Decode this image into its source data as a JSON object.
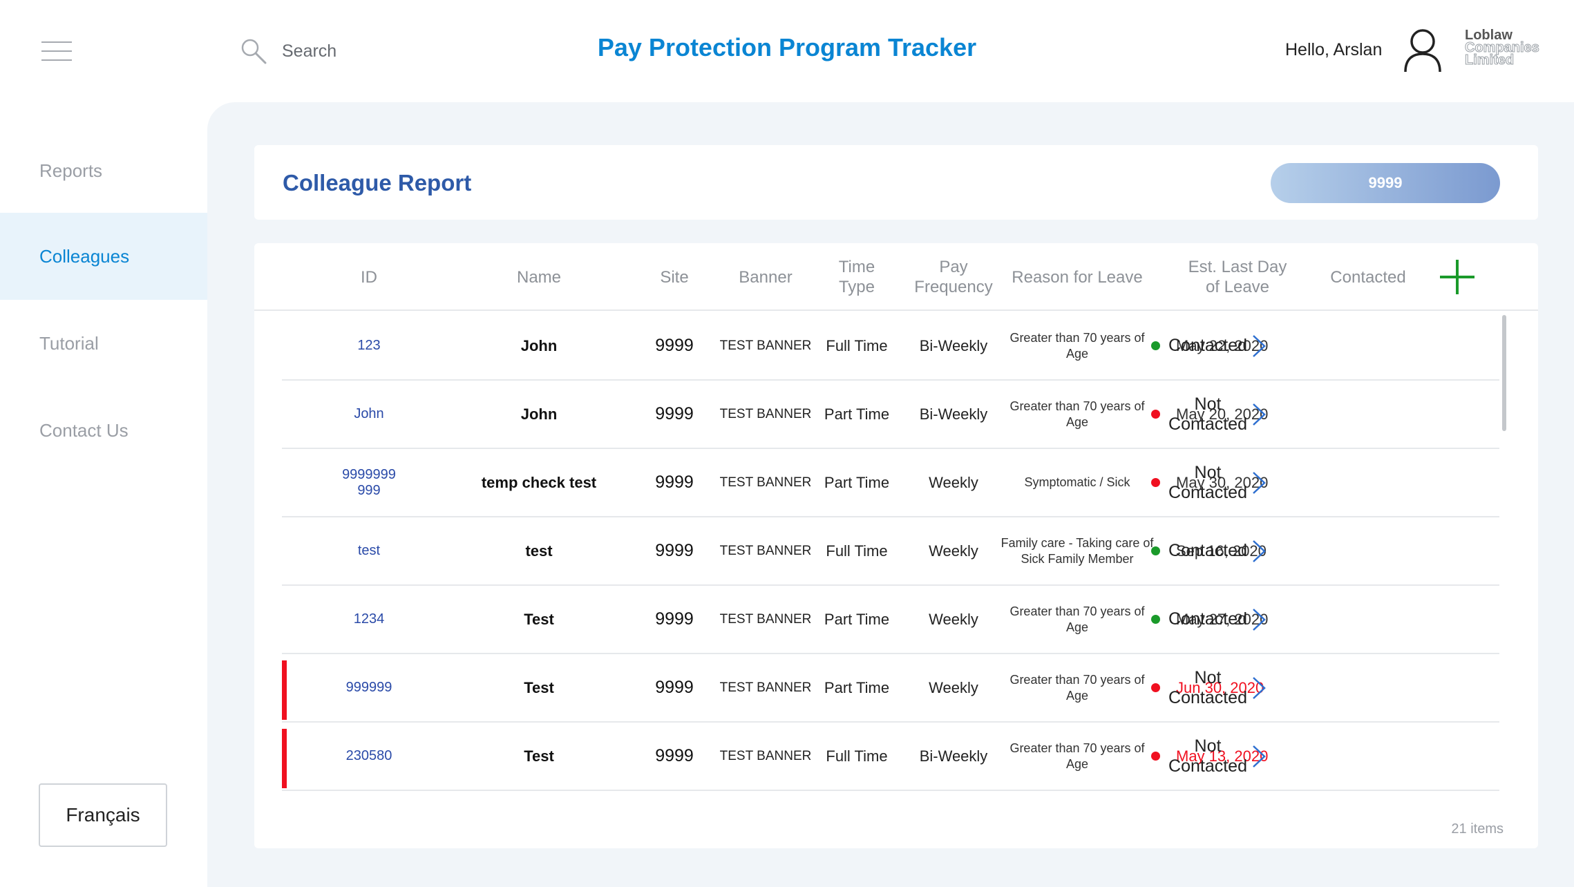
{
  "header": {
    "search_placeholder": "Search",
    "app_title": "Pay Protection Program Tracker",
    "greeting": "Hello, Arslan",
    "logo_lines": [
      "Loblaw",
      "Companies",
      "Limited"
    ]
  },
  "sidebar": {
    "items": [
      {
        "label": "Reports",
        "active": false
      },
      {
        "label": "Colleagues",
        "active": true
      },
      {
        "label": "Tutorial",
        "active": false
      },
      {
        "label": "Contact Us",
        "active": false
      }
    ],
    "language_button": "Français"
  },
  "report": {
    "title": "Colleague Report",
    "site_selector": "9999"
  },
  "table": {
    "columns": [
      "ID",
      "Name",
      "Site",
      "Banner",
      "Time\nType",
      "Pay\nFrequency",
      "Reason for Leave",
      "Est. Last Day\nof Leave",
      "Contacted"
    ],
    "rows": [
      {
        "id": "123",
        "name": "John",
        "site": "9999",
        "banner": "TEST BANNER",
        "time_type": "Full Time",
        "pay_frequency": "Bi-Weekly",
        "reason": "Greater than 70 years of\nAge",
        "last_day": "May 22, 2020",
        "overdue": false,
        "status": "Contacted",
        "contacted": true
      },
      {
        "id": "John",
        "name": "John",
        "site": "9999",
        "banner": "TEST BANNER",
        "time_type": "Part Time",
        "pay_frequency": "Bi-Weekly",
        "reason": "Greater than 70 years of\nAge",
        "last_day": "May 20, 2020",
        "overdue": false,
        "status": "Not\nContacted",
        "contacted": false
      },
      {
        "id": "9999999\n999",
        "name": "temp check test",
        "site": "9999",
        "banner": "TEST BANNER",
        "time_type": "Part Time",
        "pay_frequency": "Weekly",
        "reason": "Symptomatic / Sick",
        "last_day": "May 30, 2020",
        "overdue": false,
        "status": "Not\nContacted",
        "contacted": false
      },
      {
        "id": "test",
        "name": "test",
        "site": "9999",
        "banner": "TEST BANNER",
        "time_type": "Full Time",
        "pay_frequency": "Weekly",
        "reason": "Family care - Taking care of\nSick Family Member",
        "last_day": "Sep 16, 2020",
        "overdue": false,
        "status": "Contacted",
        "contacted": true
      },
      {
        "id": "1234",
        "name": "Test",
        "site": "9999",
        "banner": "TEST BANNER",
        "time_type": "Part Time",
        "pay_frequency": "Weekly",
        "reason": "Greater than 70 years of\nAge",
        "last_day": "May 27, 2020",
        "overdue": false,
        "status": "Contacted",
        "contacted": true
      },
      {
        "id": "999999",
        "name": "Test",
        "site": "9999",
        "banner": "TEST BANNER",
        "time_type": "Part Time",
        "pay_frequency": "Weekly",
        "reason": "Greater than 70 years of\nAge",
        "last_day": "Jun 30, 2020",
        "overdue": true,
        "status": "Not\nContacted",
        "contacted": false
      },
      {
        "id": "230580",
        "name": "Test",
        "site": "9999",
        "banner": "TEST BANNER",
        "time_type": "Full Time",
        "pay_frequency": "Bi-Weekly",
        "reason": "Greater than 70 years of\nAge",
        "last_day": "May 13, 2020",
        "overdue": true,
        "status": "Not\nContacted",
        "contacted": false
      }
    ],
    "item_count": "21 items"
  },
  "colors": {
    "brand_blue": "#0a85d3",
    "title_blue": "#2e5aa8",
    "contacted": "#1a9a2a",
    "not_contacted": "#f01020",
    "add_button": "#1a9a2a"
  },
  "icons": {
    "menu": "hamburger-icon",
    "search": "search-icon",
    "user": "user-icon",
    "add": "plus-icon",
    "row_action": "chevron-right-icon"
  }
}
